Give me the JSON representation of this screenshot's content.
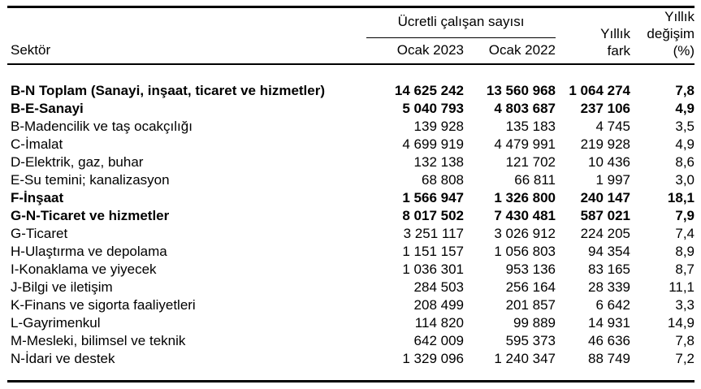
{
  "colors": {
    "text": "#000000",
    "background": "#ffffff",
    "rule": "#000000"
  },
  "header": {
    "sector": "Sektör",
    "group": "Ücretli çalışan sayısı",
    "ocak_2023": "Ocak 2023",
    "ocak_2022": "Ocak 2022",
    "yillik_fark": "Yıllık\nfark",
    "yillik_degisim": "Yıllık\ndeğişim\n(%)"
  },
  "chart_data": {
    "type": "table",
    "title": "Ücretli çalışan sayısı",
    "column_group_header": "Ücretli çalışan sayısı",
    "columns": [
      "Sektör",
      "Ocak 2023",
      "Ocak 2022",
      "Yıllık fark",
      "Yıllık değişim (%)"
    ],
    "rows": [
      {
        "sector": "B-N Toplam (Sanayi, inşaat, ticaret ve hizmetler)",
        "ocak_2023": "14 625 242",
        "ocak_2022": "13 560 968",
        "yillik_fark": "1 064 274",
        "yillik_degisim": "7,8",
        "bold": true
      },
      {
        "sector": "B-E-Sanayi",
        "ocak_2023": "5 040 793",
        "ocak_2022": "4 803 687",
        "yillik_fark": "237 106",
        "yillik_degisim": "4,9",
        "bold": true
      },
      {
        "sector": "B-Madencilik ve taş ocakçılığı",
        "ocak_2023": "139 928",
        "ocak_2022": "135 183",
        "yillik_fark": "4 745",
        "yillik_degisim": "3,5",
        "bold": false
      },
      {
        "sector": "C-İmalat",
        "ocak_2023": "4 699 919",
        "ocak_2022": "4 479 991",
        "yillik_fark": "219 928",
        "yillik_degisim": "4,9",
        "bold": false
      },
      {
        "sector": "D-Elektrik, gaz, buhar",
        "ocak_2023": "132 138",
        "ocak_2022": "121 702",
        "yillik_fark": "10 436",
        "yillik_degisim": "8,6",
        "bold": false
      },
      {
        "sector": "E-Su temini; kanalizasyon",
        "ocak_2023": "68 808",
        "ocak_2022": "66 811",
        "yillik_fark": "1 997",
        "yillik_degisim": "3,0",
        "bold": false
      },
      {
        "sector": "F-İnşaat",
        "ocak_2023": "1 566 947",
        "ocak_2022": "1 326 800",
        "yillik_fark": "240 147",
        "yillik_degisim": "18,1",
        "bold": true
      },
      {
        "sector": "G-N-Ticaret ve hizmetler",
        "ocak_2023": "8 017 502",
        "ocak_2022": "7 430 481",
        "yillik_fark": "587 021",
        "yillik_degisim": "7,9",
        "bold": true
      },
      {
        "sector": "G-Ticaret",
        "ocak_2023": "3 251 117",
        "ocak_2022": "3 026 912",
        "yillik_fark": "224 205",
        "yillik_degisim": "7,4",
        "bold": false
      },
      {
        "sector": "H-Ulaştırma ve depolama",
        "ocak_2023": "1 151 157",
        "ocak_2022": "1 056 803",
        "yillik_fark": "94 354",
        "yillik_degisim": "8,9",
        "bold": false
      },
      {
        "sector": "I-Konaklama ve yiyecek",
        "ocak_2023": "1 036 301",
        "ocak_2022": "953 136",
        "yillik_fark": "83 165",
        "yillik_degisim": "8,7",
        "bold": false
      },
      {
        "sector": "J-Bilgi ve iletişim",
        "ocak_2023": "284 503",
        "ocak_2022": "256 164",
        "yillik_fark": "28 339",
        "yillik_degisim": "11,1",
        "bold": false
      },
      {
        "sector": "K-Finans ve sigorta faaliyetleri",
        "ocak_2023": "208 499",
        "ocak_2022": "201 857",
        "yillik_fark": "6 642",
        "yillik_degisim": "3,3",
        "bold": false
      },
      {
        "sector": "L-Gayrimenkul",
        "ocak_2023": "114 820",
        "ocak_2022": "99 889",
        "yillik_fark": "14 931",
        "yillik_degisim": "14,9",
        "bold": false
      },
      {
        "sector": "M-Mesleki, bilimsel ve teknik",
        "ocak_2023": "642 009",
        "ocak_2022": "595 373",
        "yillik_fark": "46 636",
        "yillik_degisim": "7,8",
        "bold": false
      },
      {
        "sector": "N-İdari ve destek",
        "ocak_2023": "1 329 096",
        "ocak_2022": "1 240 347",
        "yillik_fark": "88 749",
        "yillik_degisim": "7,2",
        "bold": false
      }
    ]
  }
}
